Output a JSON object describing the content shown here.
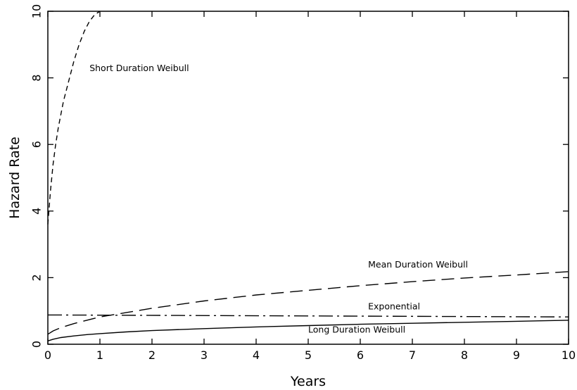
{
  "chart_data": {
    "type": "line",
    "title": "",
    "xlabel": "Years",
    "ylabel": "Hazard Rate",
    "xlim": [
      0,
      10
    ],
    "ylim": [
      0,
      10
    ],
    "xticks": [
      "0",
      "1",
      "2",
      "3",
      "4",
      "5",
      "6",
      "7",
      "8",
      "9",
      "10"
    ],
    "yticks": [
      "0",
      "2",
      "4",
      "6",
      "8",
      "10"
    ],
    "grid": false,
    "legend": "none",
    "series": [
      {
        "name": "Short Duration Weibull",
        "dash": "dashed-short",
        "x": [
          0.0,
          0.05,
          0.1,
          0.15,
          0.2,
          0.3,
          0.4,
          0.5,
          0.6,
          0.7,
          0.8,
          0.9,
          1.0
        ],
        "y": [
          3.6,
          4.6,
          5.4,
          6.0,
          6.5,
          7.3,
          7.9,
          8.5,
          9.0,
          9.4,
          9.7,
          9.9,
          10.0
        ]
      },
      {
        "name": "Mean Duration Weibull",
        "dash": "dashed-long",
        "x": [
          0.0,
          0.1,
          0.25,
          0.5,
          0.75,
          1,
          1.5,
          2,
          3,
          4,
          5,
          6,
          7,
          8,
          9,
          10
        ],
        "y": [
          0.3,
          0.4,
          0.5,
          0.62,
          0.72,
          0.82,
          0.95,
          1.08,
          1.3,
          1.48,
          1.62,
          1.76,
          1.88,
          1.99,
          2.08,
          2.18
        ]
      },
      {
        "name": "Exponential",
        "dash": "dash-dot",
        "x": [
          0,
          10
        ],
        "y": [
          0.88,
          0.82
        ]
      },
      {
        "name": "Long Duration Weibull",
        "dash": "solid",
        "x": [
          0.0,
          0.1,
          0.25,
          0.5,
          0.75,
          1,
          1.5,
          2,
          3,
          4,
          5,
          6,
          7,
          8,
          9,
          10
        ],
        "y": [
          0.1,
          0.15,
          0.2,
          0.25,
          0.29,
          0.32,
          0.37,
          0.41,
          0.47,
          0.52,
          0.56,
          0.6,
          0.63,
          0.66,
          0.69,
          0.72
        ]
      }
    ],
    "annotations": [
      {
        "text": "Short Duration Weibull",
        "x": 0.8,
        "y": 8.2,
        "anchor": "start"
      },
      {
        "text": "Mean Duration Weibull",
        "x": 6.15,
        "y": 2.3,
        "anchor": "start"
      },
      {
        "text": "Exponential",
        "x": 6.15,
        "y": 1.05,
        "anchor": "start"
      },
      {
        "text": "Long Duration Weibull",
        "x": 5.0,
        "y": 0.35,
        "anchor": "start"
      }
    ]
  }
}
